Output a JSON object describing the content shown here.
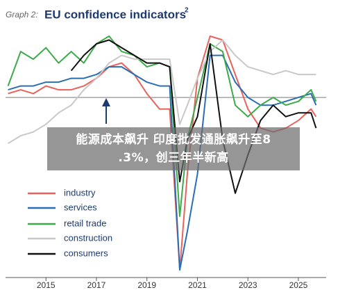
{
  "chart_data": {
    "type": "line",
    "title_prefix": "Graph 2:",
    "title": "EU confidence indicators",
    "title_note": "2",
    "x": [
      2013.5,
      2014,
      2014.5,
      2015,
      2015.5,
      2016,
      2016.5,
      2017,
      2017.5,
      2018,
      2018.5,
      2019,
      2019.5,
      2019.9,
      2020.3,
      2020.6,
      2021,
      2021.5,
      2022,
      2022.5,
      2023,
      2023.5,
      2024,
      2024.5,
      2025,
      2025.5,
      2025.7
    ],
    "xlim": [
      2013.4,
      2026.1
    ],
    "xticks": [
      2015,
      2017,
      2019,
      2021,
      2023,
      2025
    ],
    "ylim": [
      -47,
      20
    ],
    "reference_line": 0,
    "series": [
      {
        "name": "industry",
        "color": "#e8615a",
        "values": [
          1,
          2,
          1,
          3,
          2,
          2,
          3,
          5,
          8,
          9,
          6,
          1,
          -3,
          -3,
          -45,
          -20,
          5,
          16,
          15,
          6,
          -3,
          -8,
          -9,
          -8,
          -6,
          -3,
          -5
        ]
      },
      {
        "name": "services",
        "color": "#2a6db3",
        "values": [
          2,
          3,
          3,
          4,
          4,
          5,
          5,
          6,
          8,
          8,
          6,
          4,
          3,
          3,
          -45,
          -35,
          -20,
          11,
          11,
          4,
          0,
          -2,
          -2,
          -1,
          0,
          1,
          -2
        ]
      },
      {
        "name": "retail trade",
        "color": "#3caa4a",
        "values": [
          3,
          12,
          10,
          13,
          9,
          12,
          9,
          14,
          16,
          12,
          11,
          8,
          9,
          8,
          -31,
          -11,
          0,
          14,
          12,
          -2,
          -5,
          -2,
          0,
          -2,
          -1,
          2,
          -1
        ]
      },
      {
        "name": "construction",
        "color": "#c8c8c8",
        "values": [
          -12,
          -10,
          -9,
          -7,
          -4,
          -2,
          2,
          5,
          9,
          11,
          10,
          10,
          10,
          10,
          -7,
          -2,
          5,
          12,
          15,
          11,
          8,
          7,
          6,
          7,
          6,
          6,
          6
        ]
      },
      {
        "name": "consumers",
        "color": "#111111",
        "values": [
          null,
          null,
          null,
          null,
          null,
          7,
          11,
          14,
          15,
          13,
          11,
          9,
          9,
          8,
          -22,
          -11,
          -5,
          14,
          -11,
          -25,
          -15,
          -6,
          -2,
          -5,
          -4,
          -4,
          -8
        ]
      }
    ]
  },
  "overlay": {
    "caption_lines": [
      "能源成本飙升 印度批发通胀飙升至8",
      ".3%，创三年半新高"
    ]
  }
}
